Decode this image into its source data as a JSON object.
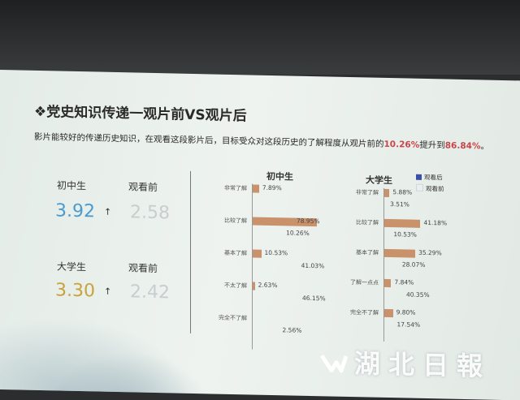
{
  "slide": {
    "title": "❖党史知识传递一观片前VS观片后",
    "subtitle_pre": "影片能较好的传递历史知识，在观看这段影片后，目标受众对这段历史的了解程度从观片前的",
    "subtitle_before_pct": "10.26%",
    "subtitle_mid": "提升到",
    "subtitle_after_pct": "86.84%",
    "subtitle_end": "。"
  },
  "stats": {
    "middle": {
      "label": "初中生",
      "after": "3.92",
      "before_label": "观看前",
      "before": "2.58",
      "arrow": "↑"
    },
    "college": {
      "label": "大学生",
      "after": "3.30",
      "before_label": "观看前",
      "before": "2.42",
      "arrow": "↑"
    }
  },
  "legend": {
    "after": "观看后",
    "before": "观看前"
  },
  "colors": {
    "after_bar": "#c9926b",
    "legend_after": "#3b4fa8",
    "legend_before": "#e9eef0",
    "highlight": "#c8464a",
    "middle_value": "#4a9bd0",
    "college_value": "#c8a33a",
    "before_value": "#c9cdd0"
  },
  "watermark": {
    "text": "湖北日報"
  },
  "chart_data": [
    {
      "type": "bar",
      "title": "初中生",
      "categories": [
        "非常了解",
        "比较了解",
        "基本了解",
        "不太了解",
        "完全不了解"
      ],
      "series": [
        {
          "name": "观看后",
          "values": [
            7.89,
            78.95,
            10.53,
            2.63,
            0
          ],
          "labels": [
            "7.89%",
            "78.95%",
            "10.53%",
            "2.63%",
            ""
          ]
        },
        {
          "name": "观看前",
          "values": [
            0,
            10.26,
            41.03,
            46.15,
            2.56
          ],
          "labels": [
            "",
            "10.26%",
            "41.03%",
            "46.15%",
            "2.56%"
          ]
        }
      ]
    },
    {
      "type": "bar",
      "title": "大学生",
      "categories": [
        "非常了解",
        "比较了解",
        "基本了解",
        "了解一点点",
        "完全不了解"
      ],
      "series": [
        {
          "name": "观看后",
          "values": [
            5.88,
            41.18,
            35.29,
            7.84,
            9.8
          ],
          "labels": [
            "5.88%",
            "41.18%",
            "35.29%",
            "7.84%",
            "9.80%"
          ]
        },
        {
          "name": "观看前",
          "values": [
            3.51,
            10.53,
            28.07,
            40.35,
            17.54
          ],
          "labels": [
            "3.51%",
            "10.53%",
            "28.07%",
            "40.35%",
            "17.54%"
          ]
        }
      ]
    }
  ]
}
